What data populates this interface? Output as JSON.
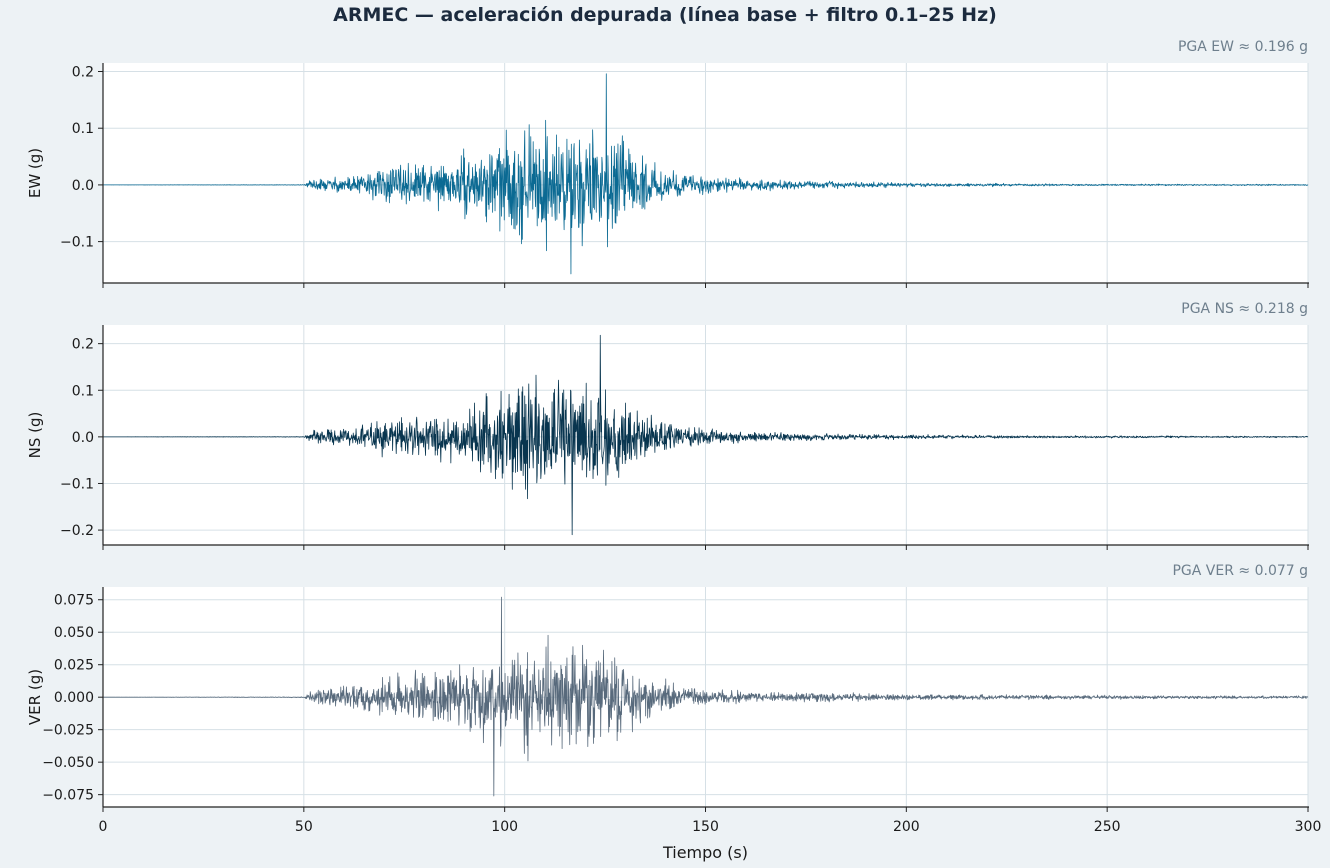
{
  "chart_data": [
    {
      "type": "line",
      "title": "ARMEC — aceleración depurada (línea base + filtro 0.1–25 Hz)",
      "annotation": "PGA EW ≈ 0.196 g",
      "ylabel": "EW (g)",
      "xlabel": "",
      "xlim": [
        0,
        300
      ],
      "ylim": [
        -0.173,
        0.215
      ],
      "yticks": [
        0.2,
        0.1,
        0.0,
        -0.1
      ],
      "ytick_labels": [
        "0.2",
        "0.1",
        "0.0",
        "−0.1"
      ],
      "xticks": [
        0,
        50,
        100,
        150,
        200,
        250,
        300
      ],
      "xtick_labels": [],
      "grid": true,
      "color": "#0b6a93",
      "pga": 0.196,
      "pga_t": 125.3,
      "pga_min": -0.157,
      "pga_min_t": 116.5,
      "envelope": [
        [
          0,
          0
        ],
        [
          50,
          0.0006
        ],
        [
          52,
          0.012
        ],
        [
          60,
          0.017
        ],
        [
          66,
          0.026
        ],
        [
          70,
          0.036
        ],
        [
          80,
          0.042
        ],
        [
          88,
          0.052
        ],
        [
          94,
          0.068
        ],
        [
          98,
          0.09
        ],
        [
          104,
          0.11
        ],
        [
          112,
          0.118
        ],
        [
          118,
          0.118
        ],
        [
          124,
          0.112
        ],
        [
          128,
          0.096
        ],
        [
          132,
          0.066
        ],
        [
          138,
          0.036
        ],
        [
          146,
          0.022
        ],
        [
          160,
          0.012
        ],
        [
          175,
          0.008
        ],
        [
          200,
          0.004
        ],
        [
          240,
          0.002
        ],
        [
          300,
          0.0012
        ]
      ],
      "seed": 11
    },
    {
      "type": "line",
      "annotation": "PGA NS ≈ 0.218 g",
      "ylabel": "NS (g)",
      "xlabel": "",
      "xlim": [
        0,
        300
      ],
      "ylim": [
        -0.232,
        0.24
      ],
      "yticks": [
        0.2,
        0.1,
        0.0,
        -0.1,
        -0.2
      ],
      "ytick_labels": [
        "0.2",
        "0.1",
        "0.0",
        "−0.1",
        "−0.2"
      ],
      "xticks": [
        0,
        50,
        100,
        150,
        200,
        250,
        300
      ],
      "xtick_labels": [],
      "grid": true,
      "color": "#08354f",
      "pga": 0.218,
      "pga_t": 123.8,
      "pga_min": -0.21,
      "pga_min_t": 116.8,
      "envelope": [
        [
          0,
          0
        ],
        [
          50,
          0.0008
        ],
        [
          52,
          0.014
        ],
        [
          60,
          0.022
        ],
        [
          66,
          0.032
        ],
        [
          70,
          0.044
        ],
        [
          80,
          0.052
        ],
        [
          88,
          0.064
        ],
        [
          94,
          0.085
        ],
        [
          98,
          0.11
        ],
        [
          104,
          0.13
        ],
        [
          112,
          0.14
        ],
        [
          118,
          0.14
        ],
        [
          124,
          0.135
        ],
        [
          128,
          0.115
        ],
        [
          132,
          0.08
        ],
        [
          138,
          0.045
        ],
        [
          146,
          0.026
        ],
        [
          160,
          0.014
        ],
        [
          175,
          0.009
        ],
        [
          200,
          0.005
        ],
        [
          240,
          0.003
        ],
        [
          300,
          0.0015
        ]
      ],
      "seed": 23
    },
    {
      "type": "line",
      "annotation": "PGA VER ≈ 0.077 g",
      "ylabel": "VER (g)",
      "xlabel": "Tiempo (s)",
      "xlim": [
        0,
        300
      ],
      "ylim": [
        -0.0845,
        0.0848
      ],
      "yticks": [
        0.075,
        0.05,
        0.025,
        0.0,
        -0.025,
        -0.05,
        -0.075
      ],
      "ytick_labels": [
        "0.075",
        "0.050",
        "0.025",
        "0.000",
        "−0.025",
        "−0.050",
        "−0.075"
      ],
      "xticks": [
        0,
        50,
        100,
        150,
        200,
        250,
        300
      ],
      "xtick_labels": [
        "0",
        "50",
        "100",
        "150",
        "200",
        "250",
        "300"
      ],
      "grid": true,
      "color": "#586a7c",
      "pga": 0.077,
      "pga_t": 99.2,
      "pga_min": -0.076,
      "pga_min_t": 97.3,
      "envelope": [
        [
          0,
          0
        ],
        [
          50,
          0.0004
        ],
        [
          52,
          0.006
        ],
        [
          60,
          0.01
        ],
        [
          66,
          0.014
        ],
        [
          70,
          0.018
        ],
        [
          80,
          0.022
        ],
        [
          88,
          0.028
        ],
        [
          94,
          0.034
        ],
        [
          98,
          0.042
        ],
        [
          104,
          0.046
        ],
        [
          112,
          0.048
        ],
        [
          118,
          0.046
        ],
        [
          124,
          0.044
        ],
        [
          128,
          0.04
        ],
        [
          132,
          0.03
        ],
        [
          138,
          0.016
        ],
        [
          146,
          0.009
        ],
        [
          160,
          0.005
        ],
        [
          175,
          0.004
        ],
        [
          200,
          0.0028
        ],
        [
          240,
          0.0018
        ],
        [
          300,
          0.0012
        ]
      ],
      "seed": 37
    }
  ]
}
